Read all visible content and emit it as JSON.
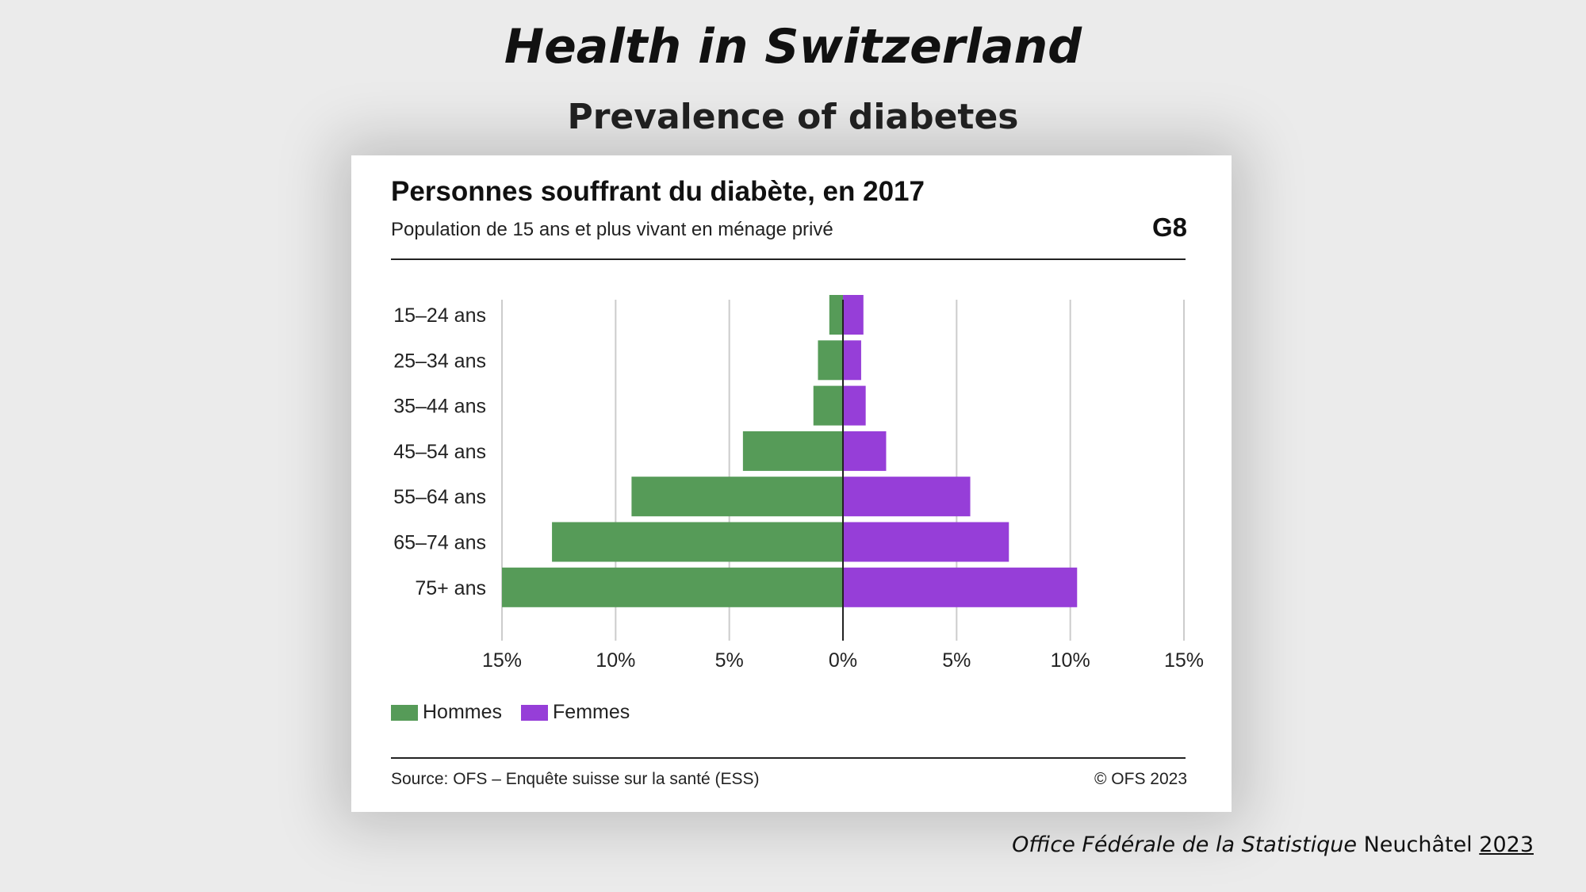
{
  "slide": {
    "title": "Health in Switzerland",
    "subtitle": "Prevalence of diabetes"
  },
  "card": {
    "code": "G8",
    "source": "Source: OFS – Enquête suisse sur la santé (ESS)",
    "copyright": "© OFS 2023"
  },
  "credit": {
    "org": "Office Fédérale de la Statistique",
    "place": "Neuchâtel",
    "year": "2023"
  },
  "colors": {
    "hommes": "#569b58",
    "femmes": "#963ed8",
    "gridline": "#cccccc",
    "axis": "#222222"
  },
  "chart_data": {
    "type": "bar",
    "orientation": "horizontal",
    "layout": "population-pyramid",
    "title": "Personnes souffrant du diabète, en 2017",
    "subtitle": "Population de 15 ans et plus vivant en ménage privé",
    "categories": [
      "15–24 ans",
      "25–34 ans",
      "35–44 ans",
      "45–54 ans",
      "55–64 ans",
      "65–74 ans",
      "75+ ans"
    ],
    "series": [
      {
        "name": "Hommes",
        "side": "left",
        "values": [
          0.6,
          1.1,
          1.3,
          4.4,
          9.3,
          12.8,
          15.0
        ]
      },
      {
        "name": "Femmes",
        "side": "right",
        "values": [
          0.9,
          0.8,
          1.0,
          1.9,
          5.6,
          7.3,
          10.3
        ]
      }
    ],
    "xlim": [
      -15,
      15
    ],
    "xticks": [
      -15,
      -10,
      -5,
      0,
      5,
      10,
      15
    ],
    "xtick_labels": [
      "15%",
      "10%",
      "5%",
      "0%",
      "5%",
      "10%",
      "15%"
    ],
    "grid": true,
    "legend": "bottom-left"
  }
}
